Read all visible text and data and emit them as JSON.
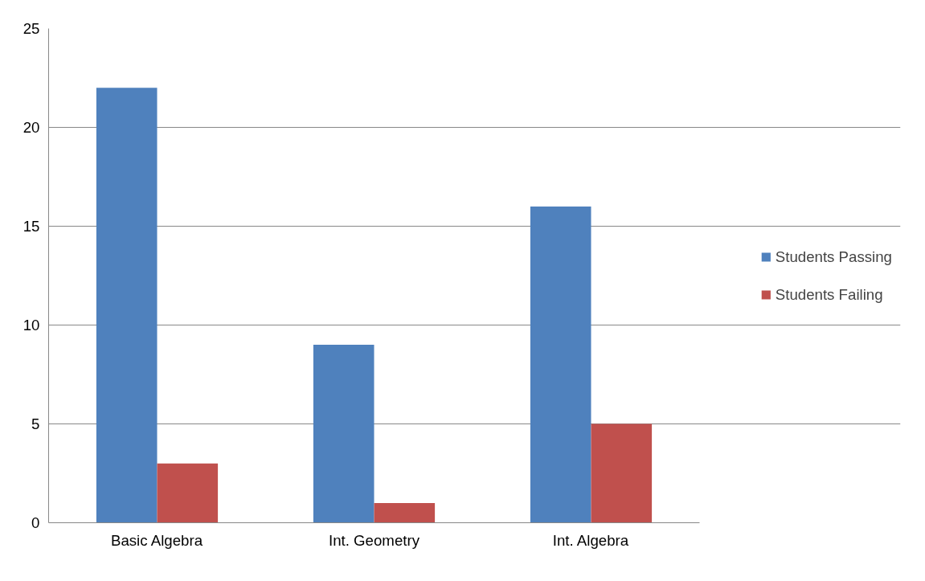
{
  "chart_data": {
    "type": "bar",
    "categories": [
      "Basic Algebra",
      "Int. Geometry",
      "Int. Algebra"
    ],
    "series": [
      {
        "name": "Students Passing",
        "color": "#4f81bd",
        "values": [
          22,
          9,
          16
        ]
      },
      {
        "name": "Students Failing",
        "color": "#c0504d",
        "values": [
          3,
          1,
          5
        ]
      }
    ],
    "ylim": [
      0,
      25
    ],
    "yticks": [
      0,
      5,
      10,
      15,
      20,
      25
    ],
    "grid": "y",
    "legend": "right"
  }
}
